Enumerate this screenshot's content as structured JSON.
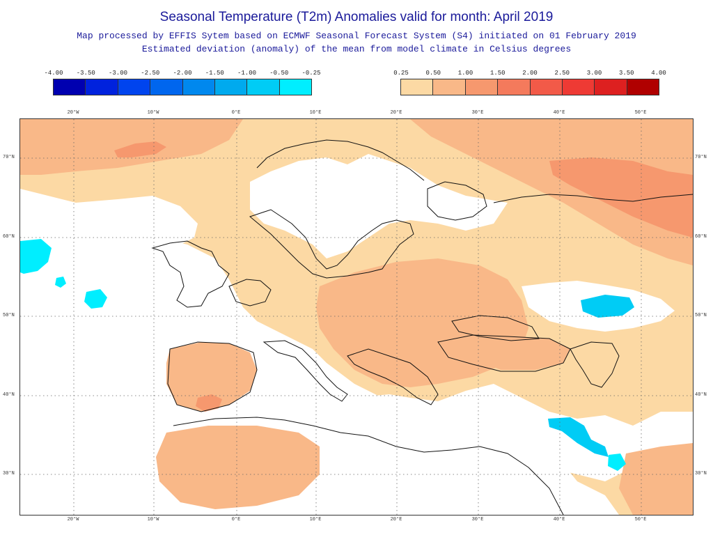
{
  "title": "Seasonal Temperature (T2m) Anomalies valid for month: April 2019",
  "subtitle_line1": "Map processed by EFFIS Sytem based on ECMWF Seasonal Forecast System (S4) initiated on 01 February 2019",
  "subtitle_line2": "Estimated deviation (anomaly) of the mean from model climate in Celsius degrees",
  "legend": {
    "negative": {
      "labels": [
        "-4.00",
        "-3.50",
        "-3.00",
        "-2.50",
        "-2.00",
        "-1.50",
        "-1.00",
        "-0.50",
        "-0.25"
      ],
      "colors": [
        "#0000b0",
        "#0022dd",
        "#0044ee",
        "#0066ee",
        "#0088ee",
        "#00aaee",
        "#00ccf5",
        "#00eeff"
      ]
    },
    "positive": {
      "labels": [
        "0.25",
        "0.50",
        "1.00",
        "1.50",
        "2.00",
        "2.50",
        "3.00",
        "3.50",
        "4.00"
      ],
      "colors": [
        "#fcd9a4",
        "#f9b888",
        "#f6986e",
        "#f47a5c",
        "#f25a48",
        "#ee3a34",
        "#dd2020",
        "#b00000"
      ]
    }
  },
  "map": {
    "longitude_labels": [
      "20°W",
      "10°W",
      "0°E",
      "10°E",
      "20°E",
      "30°E",
      "40°E",
      "50°E"
    ],
    "latitude_labels": [
      "70°N",
      "60°N",
      "50°N",
      "40°N",
      "30°N"
    ],
    "colors": {
      "light": "#fcd9a4",
      "medium": "#f9b888",
      "strong": "#f6986e",
      "cool": "#00eeff",
      "cool2": "#00ccf5",
      "coast": "#111111",
      "grid": "#666666"
    }
  }
}
